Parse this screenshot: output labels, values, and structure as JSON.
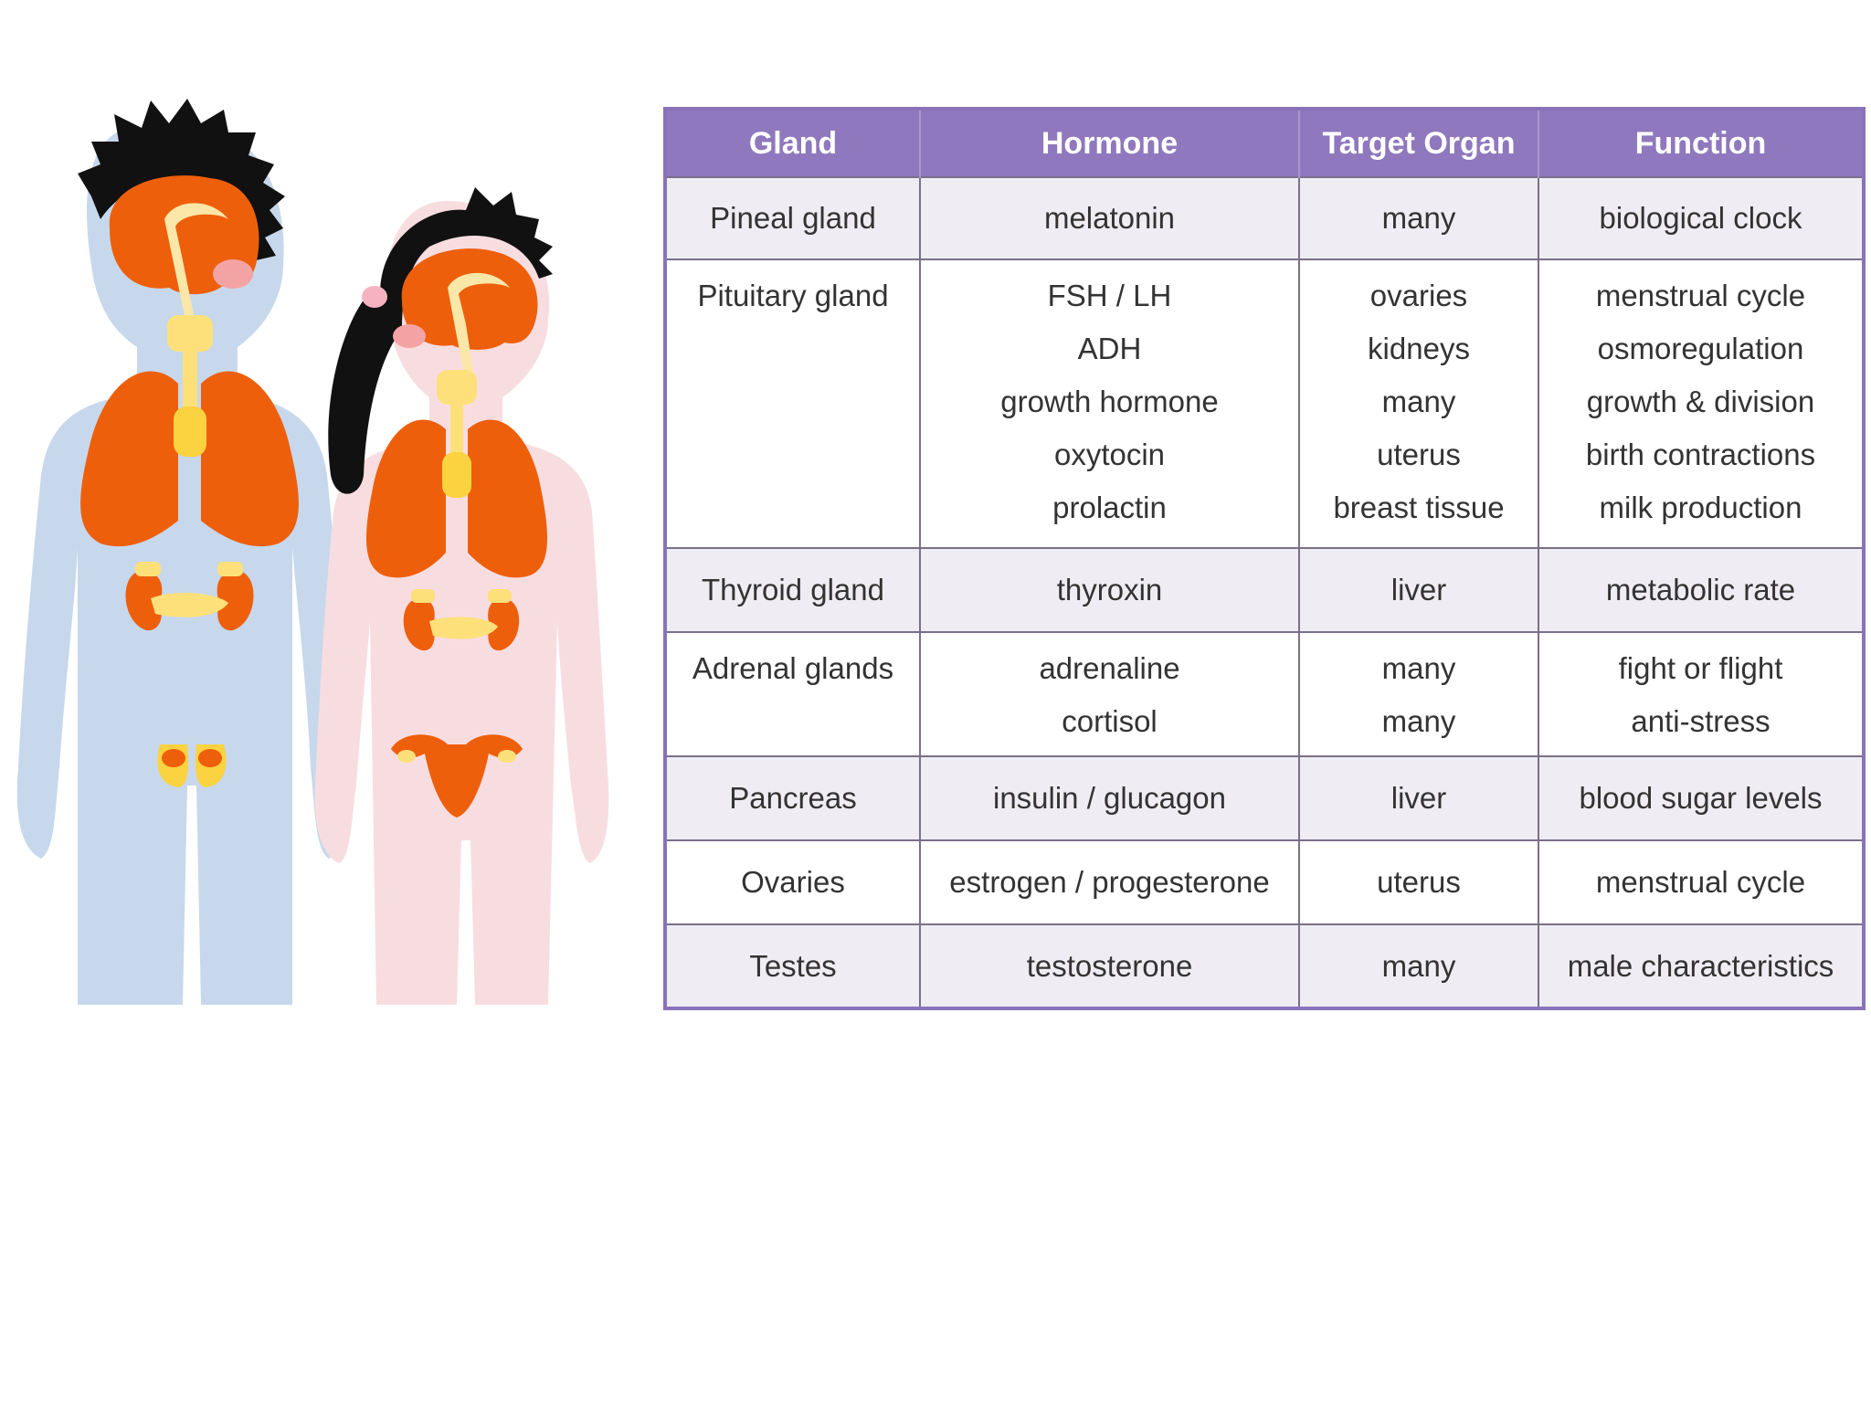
{
  "colors": {
    "header_bg": "#8f78bd",
    "border": "#7a6f8a",
    "row_shade": "#efedf3",
    "male_body": "#c7d8ec",
    "female_body": "#f8dde0",
    "organ": "#ee5f0c",
    "gland": "#fde07a",
    "hair": "#111111"
  },
  "table": {
    "headers": [
      "Gland",
      "Hormone",
      "Target Organ",
      "Function"
    ],
    "rows": [
      {
        "gland": "Pineal gland",
        "hormones": [
          "melatonin"
        ],
        "targets": [
          "many"
        ],
        "functions": [
          "biological clock"
        ]
      },
      {
        "gland": "Pituitary gland",
        "hormones": [
          "FSH / LH",
          "ADH",
          "growth hormone",
          "oxytocin",
          "prolactin"
        ],
        "targets": [
          "ovaries",
          "kidneys",
          "many",
          "uterus",
          "breast tissue"
        ],
        "functions": [
          "menstrual cycle",
          "osmoregulation",
          "growth & division",
          "birth contractions",
          "milk production"
        ]
      },
      {
        "gland": "Thyroid gland",
        "hormones": [
          "thyroxin"
        ],
        "targets": [
          "liver"
        ],
        "functions": [
          "metabolic rate"
        ]
      },
      {
        "gland": "Adrenal glands",
        "hormones": [
          "adrenaline",
          "cortisol"
        ],
        "targets": [
          "many",
          "many"
        ],
        "functions": [
          "fight or flight",
          "anti-stress"
        ]
      },
      {
        "gland": "Pancreas",
        "hormones": [
          "insulin / glucagon"
        ],
        "targets": [
          "liver"
        ],
        "functions": [
          "blood sugar levels"
        ]
      },
      {
        "gland": "Ovaries",
        "hormones": [
          "estrogen / progesterone"
        ],
        "targets": [
          "uterus"
        ],
        "functions": [
          "menstrual cycle"
        ]
      },
      {
        "gland": "Testes",
        "hormones": [
          "testosterone"
        ],
        "targets": [
          "many"
        ],
        "functions": [
          "male characteristics"
        ]
      }
    ]
  }
}
